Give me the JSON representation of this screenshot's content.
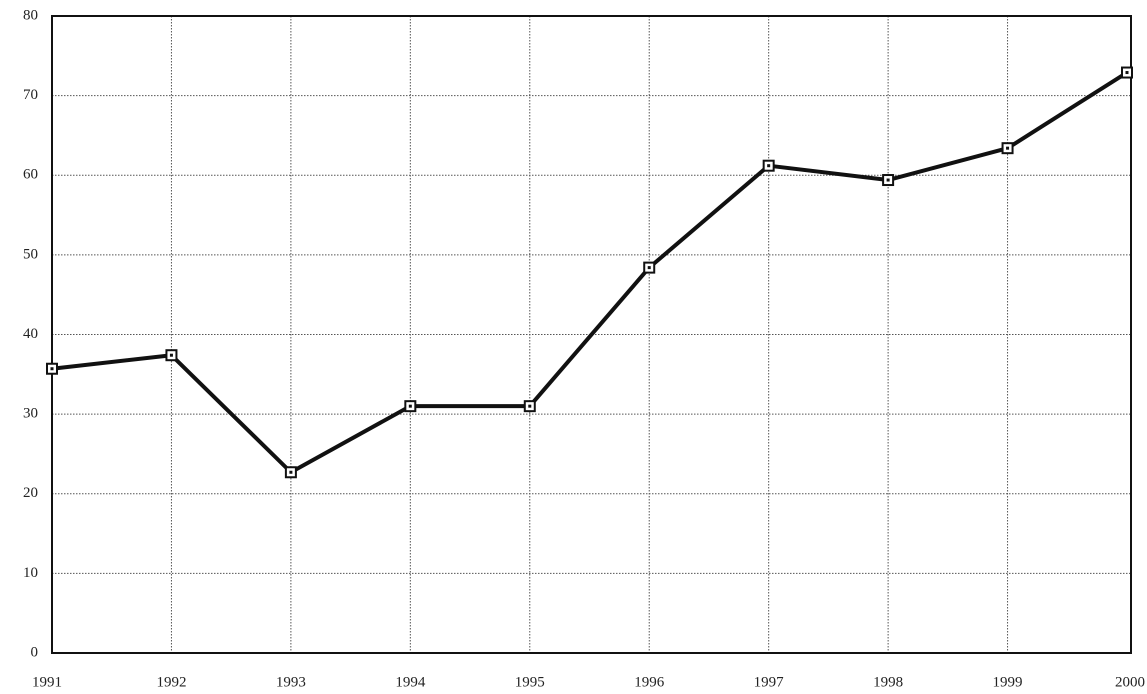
{
  "chart_data": {
    "type": "line",
    "categories": [
      "1991",
      "1992",
      "1993",
      "1994",
      "1995",
      "1996",
      "1997",
      "1998",
      "1999",
      "2000"
    ],
    "series": [
      {
        "color": "#111111",
        "values": [
          35.7,
          37.4,
          22.7,
          31.0,
          31.0,
          48.4,
          61.2,
          59.4,
          63.4,
          72.9
        ]
      }
    ],
    "ylim": [
      0,
      80
    ],
    "yticks": [
      0,
      10,
      20,
      30,
      40,
      50,
      60,
      70,
      80
    ],
    "grid": true
  }
}
